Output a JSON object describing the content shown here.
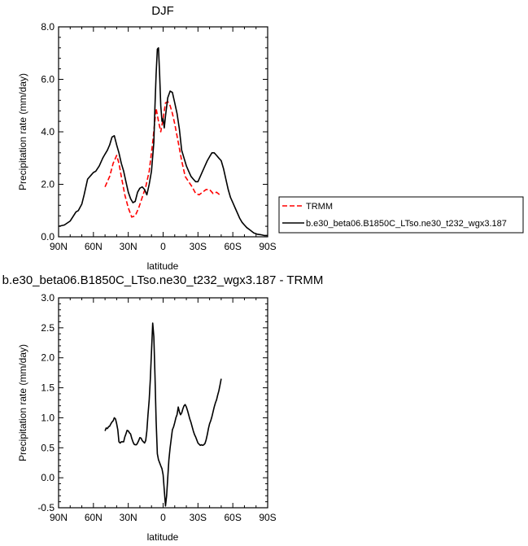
{
  "chart_data": [
    {
      "type": "line",
      "title": "DJF",
      "xlabel": "latitude",
      "ylabel": "Precipitation rate (mm/day)",
      "xlim": [
        90,
        -90
      ],
      "ylim": [
        0,
        8
      ],
      "xticks": [
        {
          "v": 90,
          "label": "90N"
        },
        {
          "v": 60,
          "label": "60N"
        },
        {
          "v": 30,
          "label": "30N"
        },
        {
          "v": 0,
          "label": "0"
        },
        {
          "v": -30,
          "label": "30S"
        },
        {
          "v": -60,
          "label": "60S"
        },
        {
          "v": -90,
          "label": "90S"
        }
      ],
      "yticks": [
        {
          "v": 0,
          "label": "0.0"
        },
        {
          "v": 2,
          "label": "2.0"
        },
        {
          "v": 4,
          "label": "4.0"
        },
        {
          "v": 6,
          "label": "6.0"
        },
        {
          "v": 8,
          "label": "8.0"
        }
      ],
      "legend_position": "right",
      "series": [
        {
          "name": "TRMM",
          "color": "#ff0000",
          "dash": true,
          "x": [
            50,
            46,
            43,
            40,
            38,
            36,
            33,
            30,
            27,
            24,
            21,
            18,
            15,
            12,
            9,
            6,
            4,
            2,
            0,
            -2,
            -4,
            -6,
            -8,
            -10,
            -13,
            -16,
            -19,
            -22,
            -25,
            -28,
            -31,
            -34,
            -37,
            -40,
            -43,
            -46,
            -50
          ],
          "y": [
            1.9,
            2.3,
            2.8,
            3.1,
            2.8,
            2.3,
            1.6,
            1.1,
            0.75,
            0.8,
            1.1,
            1.5,
            1.9,
            2.5,
            3.6,
            4.9,
            4.4,
            4.0,
            4.5,
            5.1,
            5.15,
            5.0,
            4.7,
            4.3,
            3.6,
            2.9,
            2.3,
            2.1,
            1.9,
            1.65,
            1.6,
            1.7,
            1.8,
            1.8,
            1.65,
            1.7,
            1.55
          ]
        },
        {
          "name": "b.e30_beta06.B1850C_LTso.ne30_t232_wgx3.187",
          "color": "#000000",
          "dash": false,
          "x": [
            90,
            85,
            80,
            75,
            73,
            70,
            68,
            65,
            62,
            60,
            58,
            55,
            52,
            50,
            48,
            46,
            44,
            42,
            40,
            38,
            36,
            34,
            32,
            30,
            28,
            26,
            24,
            22,
            20,
            18,
            16,
            14,
            12,
            10,
            8,
            7,
            6,
            5,
            4,
            3,
            2,
            1,
            0,
            -1,
            -2,
            -4,
            -6,
            -8,
            -10,
            -12,
            -14,
            -16,
            -18,
            -20,
            -22,
            -24,
            -26,
            -28,
            -30,
            -32,
            -34,
            -36,
            -38,
            -40,
            -42,
            -44,
            -46,
            -48,
            -50,
            -52,
            -54,
            -56,
            -58,
            -60,
            -62,
            -64,
            -66,
            -68,
            -70,
            -72,
            -75,
            -78,
            -81,
            -84,
            -87,
            -90
          ],
          "y": [
            0.4,
            0.45,
            0.6,
            0.95,
            1.0,
            1.25,
            1.6,
            2.2,
            2.35,
            2.45,
            2.5,
            2.7,
            3.0,
            3.15,
            3.3,
            3.5,
            3.8,
            3.85,
            3.5,
            3.2,
            2.8,
            2.5,
            2.1,
            1.7,
            1.45,
            1.3,
            1.35,
            1.7,
            1.85,
            1.9,
            1.8,
            1.6,
            2.0,
            2.5,
            3.6,
            5.0,
            6.2,
            7.15,
            7.2,
            6.2,
            5.0,
            4.4,
            4.5,
            4.15,
            4.6,
            5.3,
            5.55,
            5.5,
            5.1,
            4.7,
            4.1,
            3.3,
            3.0,
            2.7,
            2.5,
            2.3,
            2.2,
            2.1,
            2.1,
            2.3,
            2.5,
            2.7,
            2.9,
            3.05,
            3.2,
            3.2,
            3.1,
            3.0,
            2.9,
            2.6,
            2.2,
            1.8,
            1.5,
            1.3,
            1.1,
            0.9,
            0.7,
            0.55,
            0.45,
            0.35,
            0.25,
            0.15,
            0.1,
            0.08,
            0.05,
            0.05
          ]
        }
      ]
    },
    {
      "type": "line",
      "title": "b.e30_beta06.B1850C_LTso.ne30_t232_wgx3.187 - TRMM",
      "xlabel": "latitude",
      "ylabel": "Precipitation rate (mm/day)",
      "xlim": [
        90,
        -90
      ],
      "ylim": [
        -0.5,
        3.0
      ],
      "xticks": [
        {
          "v": 90,
          "label": "90N"
        },
        {
          "v": 60,
          "label": "60N"
        },
        {
          "v": 30,
          "label": "30N"
        },
        {
          "v": 0,
          "label": "0"
        },
        {
          "v": -30,
          "label": "30S"
        },
        {
          "v": -60,
          "label": "60S"
        },
        {
          "v": -90,
          "label": "90S"
        }
      ],
      "yticks": [
        {
          "v": -0.5,
          "label": "-0.5"
        },
        {
          "v": 0,
          "label": "0.0"
        },
        {
          "v": 0.5,
          "label": "0.5"
        },
        {
          "v": 1.0,
          "label": "1.0"
        },
        {
          "v": 1.5,
          "label": "1.5"
        },
        {
          "v": 2.0,
          "label": "2.0"
        },
        {
          "v": 2.5,
          "label": "2.5"
        },
        {
          "v": 3.0,
          "label": "3.0"
        }
      ],
      "series": [
        {
          "color": "#000000",
          "dash": false,
          "x": [
            50,
            49,
            48,
            47,
            46,
            45,
            44,
            43,
            42,
            41,
            40,
            39,
            38,
            37,
            36,
            35,
            34,
            33,
            32,
            31,
            30,
            29,
            28,
            27,
            26,
            25,
            24,
            23,
            22,
            21,
            20,
            19,
            18,
            17,
            16,
            15,
            14,
            13,
            12,
            11,
            10,
            9,
            8,
            7,
            6,
            5,
            4,
            3,
            2,
            1,
            0,
            -1,
            -2,
            -3,
            -4,
            -5,
            -6,
            -7,
            -8,
            -9,
            -10,
            -11,
            -12,
            -13,
            -14,
            -15,
            -16,
            -17,
            -18,
            -19,
            -20,
            -21,
            -22,
            -23,
            -24,
            -25,
            -26,
            -27,
            -28,
            -29,
            -30,
            -31,
            -32,
            -33,
            -34,
            -35,
            -36,
            -37,
            -38,
            -39,
            -40,
            -41,
            -42,
            -43,
            -44,
            -45,
            -46,
            -47,
            -48,
            -49,
            -50
          ],
          "y": [
            0.78,
            0.83,
            0.82,
            0.85,
            0.86,
            0.9,
            0.93,
            0.95,
            1.0,
            0.98,
            0.9,
            0.8,
            0.6,
            0.58,
            0.6,
            0.6,
            0.6,
            0.68,
            0.73,
            0.79,
            0.78,
            0.75,
            0.73,
            0.66,
            0.6,
            0.56,
            0.55,
            0.55,
            0.58,
            0.62,
            0.67,
            0.66,
            0.62,
            0.6,
            0.58,
            0.62,
            0.78,
            1.05,
            1.3,
            1.65,
            2.1,
            2.58,
            2.35,
            1.7,
            0.95,
            0.4,
            0.3,
            0.25,
            0.2,
            0.15,
            0.05,
            -0.2,
            -0.47,
            -0.3,
            0.0,
            0.3,
            0.5,
            0.65,
            0.8,
            0.85,
            0.92,
            1.0,
            1.05,
            1.18,
            1.1,
            1.05,
            1.08,
            1.15,
            1.2,
            1.22,
            1.18,
            1.12,
            1.05,
            0.98,
            0.92,
            0.85,
            0.78,
            0.72,
            0.68,
            0.63,
            0.58,
            0.56,
            0.54,
            0.55,
            0.54,
            0.55,
            0.57,
            0.63,
            0.72,
            0.82,
            0.9,
            0.95,
            1.02,
            1.1,
            1.18,
            1.25,
            1.3,
            1.38,
            1.45,
            1.55,
            1.65
          ]
        }
      ]
    }
  ]
}
